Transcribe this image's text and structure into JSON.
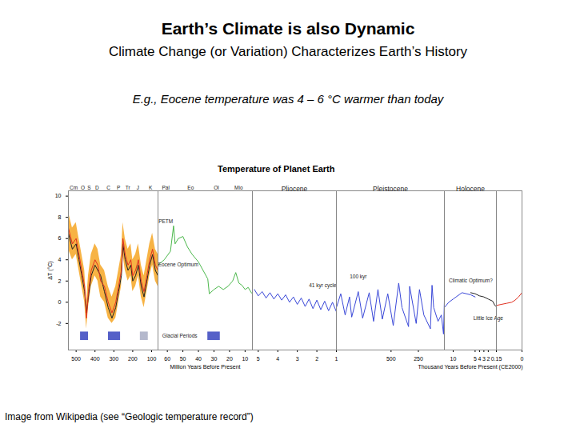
{
  "header": {
    "title": "Earth’s Climate is also Dynamic",
    "subtitle": "Climate Change (or Variation) Characterizes Earth’s History"
  },
  "note": "E.g., Eocene temperature was 4 – 6 °C warmer than today",
  "caption": "Image from Wikipedia (see “Geologic temperature record”)",
  "chart_data": [
    {
      "type": "line",
      "title": "Temperature of Planet Earth",
      "ylabel": "ΔT (°C)",
      "x": [
        541,
        520,
        500,
        485,
        470,
        455,
        445,
        435,
        420,
        400,
        385,
        370,
        350,
        330,
        310,
        290,
        275,
        260,
        252,
        240,
        225,
        210,
        200,
        185,
        170,
        155,
        140,
        125,
        110,
        95,
        80,
        66
      ],
      "series": [
        {
          "type": "area",
          "color": "#f6a623",
          "low": [
            5,
            4,
            4.5,
            3,
            1.5,
            0,
            -2.5,
            -0.5,
            1.5,
            2.5,
            2,
            0.5,
            0,
            -1.5,
            -2,
            -1.5,
            0,
            1.5,
            4.5,
            3,
            2,
            2.5,
            1,
            1.5,
            2.5,
            0.5,
            -0.5,
            1,
            2.5,
            3.5,
            2,
            1.5
          ],
          "high": [
            8.5,
            7,
            7.5,
            6,
            4.5,
            3,
            0,
            2.5,
            4.5,
            5.5,
            5,
            3.5,
            3,
            1.5,
            0.5,
            1.5,
            3,
            4.5,
            7.5,
            6,
            5,
            5.5,
            4,
            4.5,
            5.5,
            3.5,
            2.5,
            4,
            5.5,
            6.5,
            5,
            4.5
          ]
        },
        {
          "color": "#222222",
          "values": [
            6.5,
            5,
            5.5,
            4,
            2.5,
            1,
            -1,
            0.5,
            2.5,
            3.5,
            3,
            2.5,
            1,
            -0.5,
            -1.5,
            -0.5,
            1,
            2.5,
            5.5,
            4,
            3,
            3.5,
            2,
            2.5,
            3.5,
            1.5,
            0.5,
            2,
            3.5,
            4.5,
            3,
            2.5
          ]
        },
        {
          "color": "#e03020",
          "values": [
            7,
            5.5,
            6,
            4.5,
            3,
            1.5,
            -1.5,
            1,
            3,
            4,
            3.5,
            2,
            1.5,
            0,
            -1,
            0,
            1.5,
            3,
            6,
            4.5,
            3.5,
            4,
            2.5,
            3,
            4,
            2,
            1,
            2.5,
            4,
            5,
            3.5,
            3
          ]
        }
      ],
      "xlim": [
        541,
        66
      ],
      "xticks": [
        500,
        400,
        300,
        200,
        100
      ],
      "ylim": [
        -4.5,
        10.5
      ],
      "yticks": [
        -2,
        0,
        2,
        4,
        6,
        8,
        10
      ],
      "periods": [
        {
          "label": "Cm",
          "start": 541,
          "end": 485
        },
        {
          "label": "O",
          "start": 485,
          "end": 444
        },
        {
          "label": "S",
          "start": 444,
          "end": 419
        },
        {
          "label": "D",
          "start": 419,
          "end": 359
        },
        {
          "label": "C",
          "start": 359,
          "end": 299
        },
        {
          "label": "P",
          "start": 299,
          "end": 252
        },
        {
          "label": "Tr",
          "start": 252,
          "end": 201
        },
        {
          "label": "J",
          "start": 201,
          "end": 145
        },
        {
          "label": "K",
          "start": 145,
          "end": 66
        }
      ],
      "glacial_periods": [
        {
          "start": 477,
          "end": 435,
          "low": -3.6,
          "high": -2.8,
          "color": "#5560c8"
        },
        {
          "start": 329,
          "end": 265,
          "low": -3.6,
          "high": -2.8,
          "color": "#5560c8"
        },
        {
          "start": 160,
          "end": 118,
          "low": -3.6,
          "high": -2.8,
          "color": "#b4b8cc"
        }
      ]
    },
    {
      "type": "line",
      "xlabel": "Million Years Before Present",
      "tick_labels": "x",
      "x": [
        66,
        62,
        58,
        56,
        55,
        53,
        50,
        47,
        44,
        40,
        37,
        34,
        33,
        30,
        27,
        24,
        21,
        18,
        16,
        14,
        12,
        10,
        8,
        6,
        5.3
      ],
      "series": [
        {
          "color": "#4cb84c",
          "values": [
            3.5,
            4,
            4.8,
            7.2,
            5.5,
            6,
            6.2,
            5.2,
            4.5,
            3.8,
            3,
            2.2,
            0.8,
            1.2,
            1.5,
            1.2,
            1.5,
            2,
            2.8,
            1.8,
            1.6,
            1.2,
            1.4,
            0.9,
            0.8
          ]
        }
      ],
      "xlim": [
        66,
        5.3
      ],
      "xticks": [
        60,
        50,
        40,
        30,
        20,
        10
      ],
      "ylim": [
        -4.5,
        10.5
      ],
      "periods": [
        {
          "label": "Pal",
          "start": 66,
          "end": 56
        },
        {
          "label": "Eo",
          "start": 56,
          "end": 34
        },
        {
          "label": "Ol",
          "start": 34,
          "end": 23
        },
        {
          "label": "Mio",
          "start": 23,
          "end": 5.3
        }
      ],
      "glacial_periods": [
        {
          "start": 34,
          "end": 26,
          "low": -3.6,
          "high": -2.8,
          "color": "#5560c8"
        }
      ],
      "annotations": [
        {
          "text": "PETM",
          "x": 61,
          "y": 7.6
        },
        {
          "text": "Eocene Optimum",
          "x": 53,
          "y": 3.5
        },
        {
          "text": "Glacial Periods",
          "x": 52,
          "y": -3.2
        }
      ]
    },
    {
      "type": "line",
      "header": "Pliocene",
      "tick_labels": "x",
      "x": [
        5.2,
        5.0,
        4.8,
        4.6,
        4.4,
        4.2,
        4.0,
        3.8,
        3.6,
        3.4,
        3.2,
        3.0,
        2.8,
        2.6,
        2.4,
        2.2,
        2.0,
        1.8,
        1.6,
        1.4,
        1.2,
        1.0
      ],
      "series": [
        {
          "color": "#3a48d8",
          "values": [
            1.2,
            0.6,
            1.0,
            0.4,
            0.9,
            0.3,
            0.8,
            0.2,
            0.7,
            0.0,
            0.5,
            -0.2,
            0.4,
            -0.4,
            0.3,
            -0.6,
            0.2,
            -0.7,
            0.1,
            -0.8,
            0.0,
            -0.9
          ]
        }
      ],
      "xlim": [
        5.3,
        1
      ],
      "xticks": [
        5,
        4,
        3,
        2,
        1
      ],
      "ylim": [
        -4.5,
        10.5
      ],
      "annotations": [
        {
          "text": "41 kyr cycle",
          "x": 1.7,
          "y": 1.6
        }
      ]
    },
    {
      "type": "line",
      "header": "Pleistocene",
      "tick_labels": "x",
      "x": [
        1000,
        960,
        920,
        880,
        860,
        800,
        760,
        700,
        660,
        620,
        580,
        530,
        480,
        430,
        400,
        340,
        330,
        270,
        240,
        200,
        140,
        125,
        110,
        70,
        40,
        20,
        12
      ],
      "series": [
        {
          "color": "#3a48d8",
          "values": [
            -0.5,
            0.8,
            -1.2,
            0.5,
            -1.4,
            1.0,
            -1.5,
            0.9,
            -1.8,
            1.2,
            -1.6,
            0.8,
            -2.2,
            1.8,
            -0.5,
            -2.3,
            1.5,
            -2.0,
            1.2,
            -1.2,
            -2.5,
            1.6,
            -0.5,
            -1.8,
            -1.2,
            -3.0,
            0.2
          ]
        }
      ],
      "xlim": [
        1000,
        12
      ],
      "xticks": [
        500,
        250
      ],
      "ylim": [
        -4.5,
        10.5
      ],
      "annotations": [
        {
          "text": "100 kyr",
          "x": 800,
          "y": 2.4
        }
      ]
    },
    {
      "type": "line",
      "header": "Holocene",
      "xlabel": "Thousand Years Before Present (CE2000)",
      "tick_labels": "x",
      "x": [
        12,
        11,
        10,
        9,
        8,
        7,
        6,
        5,
        4,
        3,
        2,
        1,
        0.5,
        0.15
      ],
      "series": [
        {
          "color": "#3a48d8",
          "values": [
            -0.5,
            0.0,
            0.3,
            0.6,
            0.9,
            0.8,
            0.7,
            0.5,
            null,
            null,
            null,
            null,
            null,
            null
          ]
        },
        {
          "color": "#222222",
          "values": [
            null,
            null,
            null,
            null,
            null,
            null,
            0.9,
            0.8,
            0.6,
            0.5,
            0.3,
            0.1,
            -0.3,
            -0.4
          ]
        }
      ],
      "xlim": [
        12,
        0.15
      ],
      "xticks": [
        10,
        5,
        4,
        3,
        2
      ],
      "ylim": [
        -4.5,
        10.5
      ],
      "annotations": [
        {
          "text": "Climatic Optimum?",
          "x": 6,
          "y": 2.0
        },
        {
          "text": "Little Ice Age",
          "x": 2,
          "y": -1.5
        }
      ]
    },
    {
      "type": "line",
      "tick_labels": "x",
      "x": [
        0.15,
        0.12,
        0.09,
        0.06,
        0.04,
        0.02,
        0
      ],
      "series": [
        {
          "color": "#e03020",
          "values": [
            -0.3,
            -0.2,
            -0.1,
            0.0,
            0.2,
            0.5,
            0.9
          ]
        }
      ],
      "xlim": [
        0.15,
        0
      ],
      "xticks": [
        0.15,
        0
      ],
      "ylim": [
        -4.5,
        10.5
      ]
    }
  ]
}
